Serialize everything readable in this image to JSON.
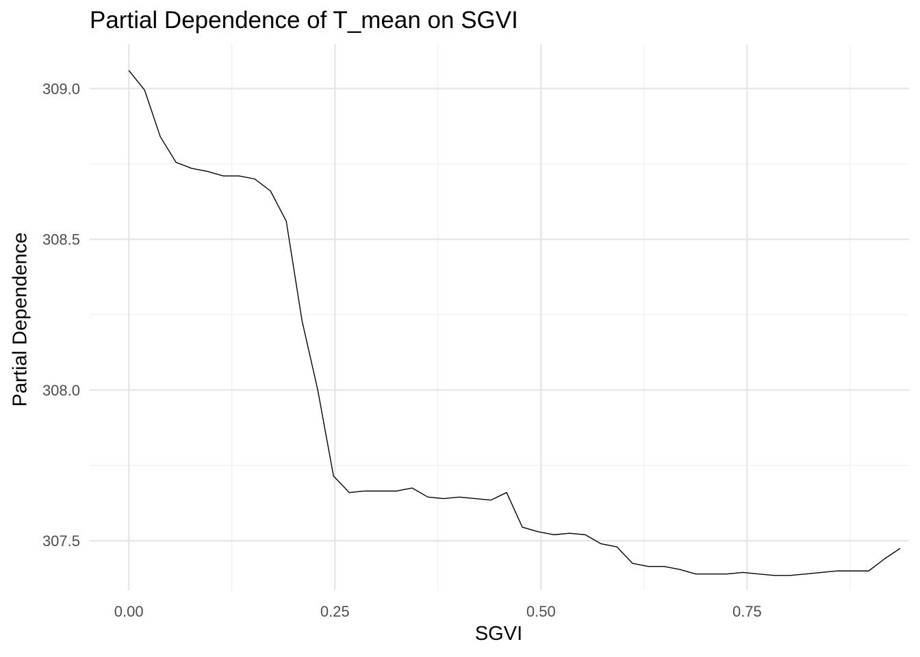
{
  "chart_data": {
    "type": "line",
    "title": "Partial Dependence of T_mean on SGVI",
    "xlabel": "SGVI",
    "ylabel": "Partial Dependence",
    "xlim": [
      -0.0475,
      0.9465
    ],
    "ylim": [
      307.337,
      309.146
    ],
    "x_ticks": [
      0.0,
      0.25,
      0.5,
      0.75
    ],
    "x_tick_labels": [
      "0.00",
      "0.25",
      "0.50",
      "0.75"
    ],
    "y_ticks": [
      307.5,
      308.0,
      308.5,
      309.0
    ],
    "y_tick_labels": [
      "307.5",
      "308.0",
      "308.5",
      "309.0"
    ],
    "grid": true,
    "series": [
      {
        "color": "#000000",
        "x": [
          0.0,
          0.0191,
          0.0382,
          0.0573,
          0.0764,
          0.0955,
          0.1146,
          0.1337,
          0.1528,
          0.1719,
          0.191,
          0.2101,
          0.2292,
          0.2483,
          0.2674,
          0.2865,
          0.3056,
          0.3247,
          0.3438,
          0.3628,
          0.3819,
          0.401,
          0.4201,
          0.4392,
          0.4583,
          0.4774,
          0.4965,
          0.5156,
          0.5347,
          0.5538,
          0.5729,
          0.592,
          0.6111,
          0.6302,
          0.6493,
          0.6684,
          0.6875,
          0.7066,
          0.7257,
          0.7448,
          0.7639,
          0.783,
          0.8021,
          0.8212,
          0.8403,
          0.8594,
          0.8785,
          0.8976,
          0.9167,
          0.9358
        ],
        "y": [
          309.06,
          308.995,
          308.84,
          308.755,
          308.735,
          308.725,
          308.71,
          308.71,
          308.7,
          308.66,
          308.56,
          308.23,
          308.0,
          307.715,
          307.66,
          307.665,
          307.665,
          307.665,
          307.675,
          307.645,
          307.64,
          307.645,
          307.64,
          307.635,
          307.66,
          307.545,
          307.53,
          307.52,
          307.525,
          307.52,
          307.49,
          307.48,
          307.425,
          307.415,
          307.415,
          307.405,
          307.39,
          307.39,
          307.39,
          307.395,
          307.39,
          307.385,
          307.385,
          307.39,
          307.395,
          307.4,
          307.4,
          307.4,
          307.44,
          307.475
        ]
      }
    ]
  }
}
